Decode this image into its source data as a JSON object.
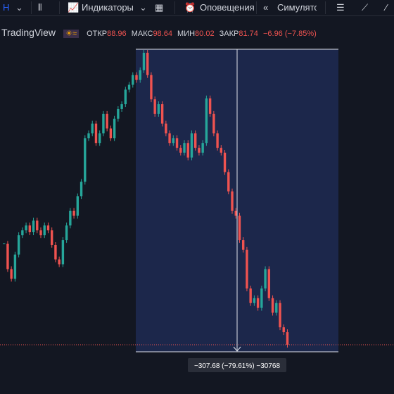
{
  "toolbar": {
    "symbol": "H",
    "indicators": "Индикаторы",
    "alerts": "Оповещения",
    "replay": "Симулятор"
  },
  "legend": {
    "brand": "TradingView",
    "open_label": "ОТКР",
    "open": "88.96",
    "high_label": "МАКС",
    "high": "98.64",
    "low_label": "МИН",
    "low": "80.02",
    "close_label": "ЗАКР",
    "close": "81.74",
    "change": "−6.96 (−7.85%)"
  },
  "measure": {
    "label": "−307.68 (−79.61%) −30768"
  },
  "chart_data": {
    "type": "candlestick",
    "up_color": "#26a69a",
    "down_color": "#ef5350",
    "values": [
      186,
      160,
      150,
      175,
      195,
      200,
      205,
      198,
      210,
      200,
      195,
      205,
      200,
      185,
      170,
      165,
      190,
      205,
      220,
      215,
      235,
      250,
      295,
      300,
      310,
      290,
      300,
      320,
      305,
      295,
      315,
      325,
      330,
      345,
      350,
      360,
      355,
      365,
      383,
      360,
      335,
      320,
      330,
      310,
      300,
      290,
      295,
      285,
      280,
      290,
      275,
      300,
      285,
      280,
      290,
      336,
      320,
      300,
      285,
      280,
      260,
      240,
      220,
      215,
      190,
      180,
      140,
      125,
      130,
      120,
      140,
      160,
      130,
      115,
      125,
      100,
      95,
      82
    ]
  }
}
